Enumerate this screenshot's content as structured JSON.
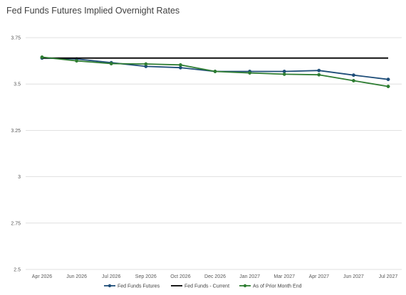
{
  "chart_data": {
    "type": "line",
    "title": "Fed Funds Futures Implied Overnight Rates",
    "xlabel": "",
    "ylabel": "",
    "categories": [
      "Apr 2026",
      "Jun 2026",
      "Jul 2026",
      "Sep 2026",
      "Oct 2026",
      "Dec 2026",
      "Jan 2027",
      "Mar 2027",
      "Apr 2027",
      "Jun 2027",
      "Jul 2027"
    ],
    "y_ticks": [
      "3.75",
      "3.5",
      "3.25",
      "3",
      "2.75",
      "2.5"
    ],
    "ylim": [
      2.5,
      3.75
    ],
    "grid": true,
    "legend": "bottom",
    "series": [
      {
        "name": "Fed Funds Futures",
        "color": "#1f4e79",
        "marker": true,
        "values": [
          3.64,
          3.635,
          3.615,
          3.595,
          3.588,
          3.568,
          3.568,
          3.568,
          3.573,
          3.548,
          3.525
        ]
      },
      {
        "name": "Fed Funds - Current",
        "color": "#000000",
        "marker": false,
        "values": [
          3.64,
          3.64,
          3.64,
          3.64,
          3.64,
          3.64,
          3.64,
          3.64,
          3.64,
          3.64,
          3.64
        ]
      },
      {
        "name": "As of Prior Month End",
        "color": "#2e7d32",
        "marker": true,
        "values": [
          3.645,
          3.625,
          3.61,
          3.608,
          3.603,
          3.568,
          3.56,
          3.553,
          3.55,
          3.518,
          3.487
        ]
      }
    ]
  }
}
